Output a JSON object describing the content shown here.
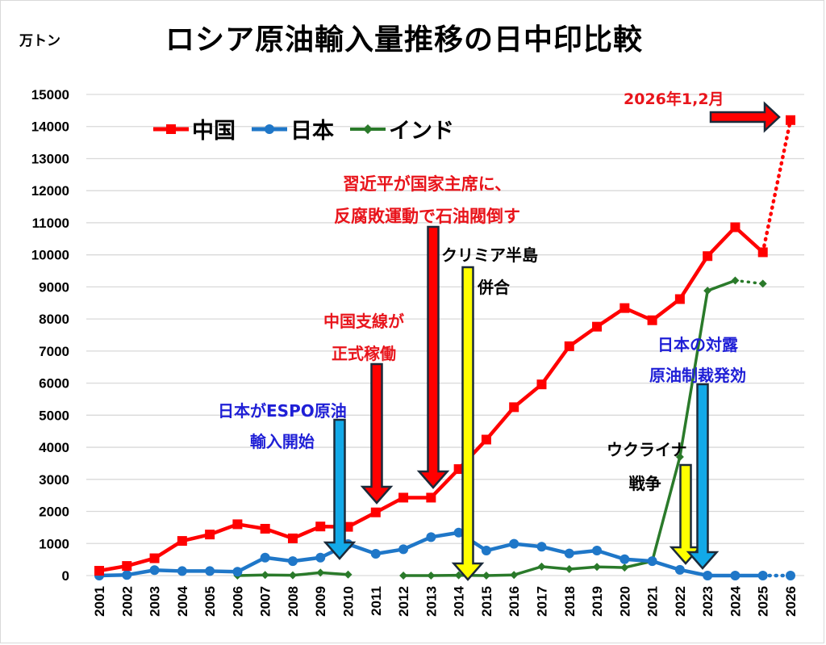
{
  "chart_data": {
    "type": "line",
    "title": "ロシア原油輸入量推移の日中印比較",
    "ylabel": "万トン",
    "xlabel": "",
    "ylim": [
      0,
      15000
    ],
    "yticks": [
      0,
      1000,
      2000,
      3000,
      4000,
      5000,
      6000,
      7000,
      8000,
      9000,
      10000,
      11000,
      12000,
      13000,
      14000,
      15000
    ],
    "grid": true,
    "legend_position": "top-left",
    "categories": [
      "2001",
      "2002",
      "2003",
      "2004",
      "2005",
      "2006",
      "2007",
      "2008",
      "2009",
      "2010",
      "2011",
      "2012",
      "2013",
      "2014",
      "2015",
      "2016",
      "2017",
      "2018",
      "2019",
      "2020",
      "2021",
      "2022",
      "2023",
      "2024",
      "2025",
      "2026"
    ],
    "series": [
      {
        "name": "中国",
        "color": "#ff0000",
        "marker": "square",
        "values": [
          150,
          300,
          540,
          1080,
          1280,
          1600,
          1460,
          1160,
          1530,
          1520,
          1970,
          2430,
          2430,
          3320,
          4240,
          5250,
          5960,
          7150,
          7760,
          8340,
          7960,
          8620,
          9960,
          10860,
          10080,
          14200
        ],
        "dotted_from": "2025"
      },
      {
        "name": "日本",
        "color": "#1f77c8",
        "marker": "circle",
        "values": [
          0,
          20,
          170,
          140,
          140,
          120,
          560,
          450,
          560,
          980,
          680,
          820,
          1200,
          1340,
          780,
          990,
          900,
          690,
          780,
          510,
          450,
          180,
          0,
          0,
          0,
          0
        ],
        "dotted_from": "2025"
      },
      {
        "name": "インド",
        "color": "#2a7a2a",
        "marker": "diamond",
        "values": [
          null,
          null,
          null,
          null,
          null,
          0,
          20,
          10,
          90,
          30,
          null,
          0,
          0,
          10,
          0,
          20,
          280,
          200,
          270,
          250,
          450,
          3700,
          8880,
          9200,
          9100,
          null
        ],
        "dotted_from": "2024"
      }
    ],
    "annotations": [
      {
        "id": "china-2026",
        "lines": [
          "2026年1,2月"
        ],
        "color": "#e8141b",
        "arrow": "right",
        "arrow_color": "#ff0000",
        "target_year": "2026"
      },
      {
        "id": "xi-jinping",
        "lines": [
          "習近平が国家主席に、",
          "反腐敗運動で石油閥倒す"
        ],
        "color": "#e8141b",
        "arrow": "down",
        "arrow_color": "#ff0000",
        "target_year": "2013"
      },
      {
        "id": "crimea",
        "lines": [
          "クリミア半島",
          "併合"
        ],
        "color": "#000000",
        "arrow": "down",
        "arrow_color": "#ffff00",
        "target_year": "2014"
      },
      {
        "id": "china-branch",
        "lines": [
          "中国支線が",
          "正式稼働"
        ],
        "color": "#e8141b",
        "arrow": "down",
        "arrow_color": "#ff0000",
        "target_year": "2011"
      },
      {
        "id": "japan-espo",
        "lines": [
          "日本がESPO原油",
          "輸入開始"
        ],
        "color": "#1f1fd6",
        "arrow": "down",
        "arrow_color": "#12a9e8",
        "target_year": "2010"
      },
      {
        "id": "ukraine-war",
        "lines": [
          "ウクライナ",
          "戦争"
        ],
        "color": "#000000",
        "arrow": "down",
        "arrow_color": "#ffff00",
        "target_year": "2022"
      },
      {
        "id": "japan-sanctions",
        "lines": [
          "日本の対露",
          "原油制裁発効"
        ],
        "color": "#1f1fd6",
        "arrow": "down",
        "arrow_color": "#12a9e8",
        "target_year": "2023"
      }
    ]
  }
}
